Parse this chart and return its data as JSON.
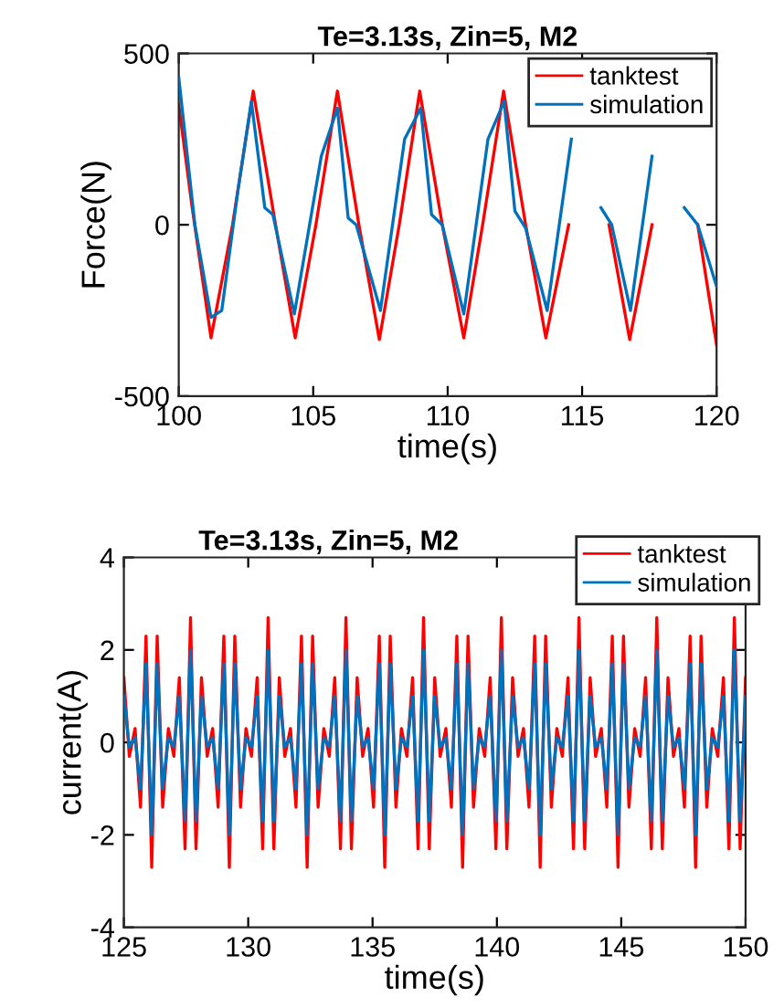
{
  "chart_data": [
    {
      "type": "line",
      "title": "Te=3.13s, Zin=5, M2",
      "xlabel": "time(s)",
      "ylabel": "Force(N)",
      "xlim": [
        100,
        120
      ],
      "xticks": [
        100,
        105,
        110,
        115,
        120
      ],
      "ylim": [
        -500,
        500
      ],
      "yticks": [
        -500,
        0,
        500
      ],
      "legend": "top right",
      "grid": false,
      "series": [
        {
          "name": "tanktest",
          "color": "#ff0000",
          "x": [
            100,
            100.5,
            101.2,
            102.0,
            102.77,
            103.6,
            104.33,
            105.1,
            105.9,
            106.7,
            107.46,
            108.2,
            108.96,
            109.8,
            110.6,
            111.3,
            112.08,
            112.9,
            113.65,
            114.5,
            115.3,
            116.0,
            116.77,
            117.6,
            118.44,
            119.3,
            120
          ],
          "values": [
            350,
            50,
            -330,
            0,
            390,
            0,
            -330,
            0,
            390,
            0,
            -335,
            0,
            390,
            0,
            -330,
            0,
            390,
            0,
            -330,
            0,
            null,
            0,
            -335,
            0,
            null,
            0,
            -350
          ]
        },
        {
          "name": "simulation",
          "color": "#0072bd",
          "x": [
            100,
            100.6,
            101.2,
            101.6,
            102.2,
            102.7,
            103.2,
            103.5,
            104.3,
            105.3,
            105.9,
            106.3,
            106.6,
            107.5,
            108.4,
            109.0,
            109.4,
            109.8,
            110.6,
            111.5,
            112.1,
            112.5,
            112.9,
            113.7,
            114.6,
            115.3,
            115.7,
            116.1,
            116.8,
            117.6,
            118.4,
            118.8,
            119.3,
            120
          ],
          "values": [
            430,
            0,
            -270,
            -250,
            100,
            360,
            50,
            30,
            -260,
            200,
            340,
            20,
            0,
            -250,
            250,
            340,
            30,
            0,
            -260,
            250,
            360,
            40,
            -10,
            -250,
            250,
            null,
            50,
            0,
            -250,
            200,
            null,
            50,
            0,
            -180
          ]
        }
      ]
    },
    {
      "type": "line",
      "title": "Te=3.13s, Zin=5, M2",
      "xlabel": "time(s)",
      "ylabel": "current(A)",
      "xlim": [
        125,
        150
      ],
      "xticks": [
        125,
        130,
        135,
        140,
        145,
        150
      ],
      "ylim": [
        -4,
        4
      ],
      "yticks": [
        -4,
        -2,
        0,
        2,
        4
      ],
      "legend": "top right",
      "grid": false,
      "x": [
        125.0,
        125.22,
        125.45,
        125.67,
        125.89,
        126.12,
        126.34,
        126.56,
        126.79,
        127.01,
        127.23,
        127.46,
        127.68,
        127.9,
        128.12,
        128.35,
        128.57,
        128.79,
        129.02,
        129.24,
        129.46,
        129.69,
        129.91,
        130.13,
        130.36,
        130.58,
        130.8,
        131.03,
        131.25,
        131.47,
        131.7,
        131.92,
        132.14,
        132.37,
        132.59,
        132.81,
        133.04,
        133.26,
        133.48,
        133.71,
        133.93,
        134.15,
        134.38,
        134.6,
        134.82,
        135.04,
        135.27,
        135.49,
        135.71,
        135.94,
        136.16,
        136.38,
        136.61,
        136.83,
        137.05,
        137.28,
        137.5,
        137.72,
        137.95,
        138.17,
        138.39,
        138.62,
        138.84,
        139.06,
        139.29,
        139.51,
        139.73,
        139.96,
        140.18,
        140.4,
        140.63,
        140.85,
        141.07,
        141.29,
        141.52,
        141.74,
        141.96,
        142.19,
        142.41,
        142.63,
        142.86,
        143.08,
        143.3,
        143.53,
        143.75,
        143.97,
        144.2,
        144.42,
        144.64,
        144.87,
        145.09,
        145.31,
        145.54,
        145.76,
        145.98,
        146.21,
        146.43,
        146.65,
        146.88,
        147.1,
        147.32,
        147.54,
        147.77,
        147.99,
        148.21,
        148.44,
        148.66,
        148.88,
        149.11,
        149.33,
        149.55,
        149.78,
        150.0
      ],
      "series": [
        {
          "name": "tanktest",
          "color": "#ff0000",
          "values": [
            1.4,
            -0.3,
            0.3,
            -1.4,
            2.3,
            -2.7,
            2.3,
            -1.4,
            0.3,
            -0.3,
            1.4,
            -2.3,
            2.7,
            -2.3,
            1.4,
            -0.3,
            0.3,
            -1.4,
            2.3,
            -2.7,
            2.3,
            -1.4,
            0.3,
            -0.3,
            1.4,
            -2.3,
            2.7,
            -2.3,
            1.4,
            -0.3,
            0.3,
            -1.4,
            2.3,
            -2.7,
            2.3,
            -1.4,
            0.3,
            -0.3,
            1.4,
            -2.3,
            2.7,
            -2.3,
            1.4,
            -0.3,
            0.3,
            -1.4,
            2.3,
            -2.7,
            2.3,
            -1.4,
            0.3,
            -0.3,
            1.4,
            -2.3,
            2.7,
            -2.3,
            1.4,
            -0.3,
            0.3,
            -1.4,
            2.3,
            -2.7,
            2.3,
            -1.4,
            0.3,
            -0.3,
            1.4,
            -2.3,
            2.7,
            -2.3,
            1.4,
            -0.3,
            0.3,
            -1.4,
            2.3,
            -2.7,
            2.3,
            -1.4,
            0.3,
            -0.3,
            1.4,
            -2.3,
            2.7,
            -2.3,
            1.4,
            -0.3,
            0.3,
            -1.4,
            2.3,
            -2.7,
            2.3,
            -1.4,
            0.3,
            -0.3,
            1.4,
            -2.3,
            2.7,
            -2.3,
            1.4,
            -0.3,
            0.3,
            -1.4,
            2.3,
            -2.7,
            2.3,
            -1.4,
            0.3,
            -0.3,
            1.4,
            -2.3,
            2.7,
            -2.3,
            1.4
          ]
        },
        {
          "name": "simulation",
          "color": "#0072bd",
          "values": [
            1.0,
            -0.1,
            0.1,
            -1.0,
            1.7,
            -2.0,
            1.7,
            -1.0,
            0.1,
            -0.1,
            1.0,
            -1.7,
            2.0,
            -1.7,
            1.0,
            -0.1,
            0.1,
            -1.0,
            1.7,
            -2.0,
            1.7,
            -1.0,
            0.1,
            -0.1,
            1.0,
            -1.7,
            2.0,
            -1.7,
            1.0,
            -0.1,
            0.1,
            -1.0,
            1.7,
            -2.0,
            1.7,
            -1.0,
            0.1,
            -0.1,
            1.0,
            -1.7,
            2.0,
            -1.7,
            1.0,
            -0.1,
            0.1,
            -1.0,
            1.7,
            -2.0,
            1.7,
            -1.0,
            0.1,
            -0.1,
            1.0,
            -1.7,
            2.0,
            -1.7,
            1.0,
            -0.1,
            0.1,
            -1.0,
            1.7,
            -2.0,
            1.7,
            -1.0,
            0.1,
            -0.1,
            1.0,
            -1.7,
            2.0,
            -1.7,
            1.0,
            -0.1,
            0.1,
            -1.0,
            1.7,
            -2.0,
            1.7,
            -1.0,
            0.1,
            -0.1,
            1.0,
            -1.7,
            2.0,
            -1.7,
            1.0,
            -0.1,
            0.1,
            -1.0,
            1.7,
            -2.0,
            1.7,
            -1.0,
            0.1,
            -0.1,
            1.0,
            -1.7,
            2.0,
            -1.7,
            1.0,
            -0.1,
            0.1,
            -1.0,
            1.7,
            -2.0,
            1.7,
            -1.0,
            0.1,
            -0.1,
            1.0,
            -1.7,
            2.0,
            -1.7,
            1.0
          ]
        }
      ]
    }
  ]
}
